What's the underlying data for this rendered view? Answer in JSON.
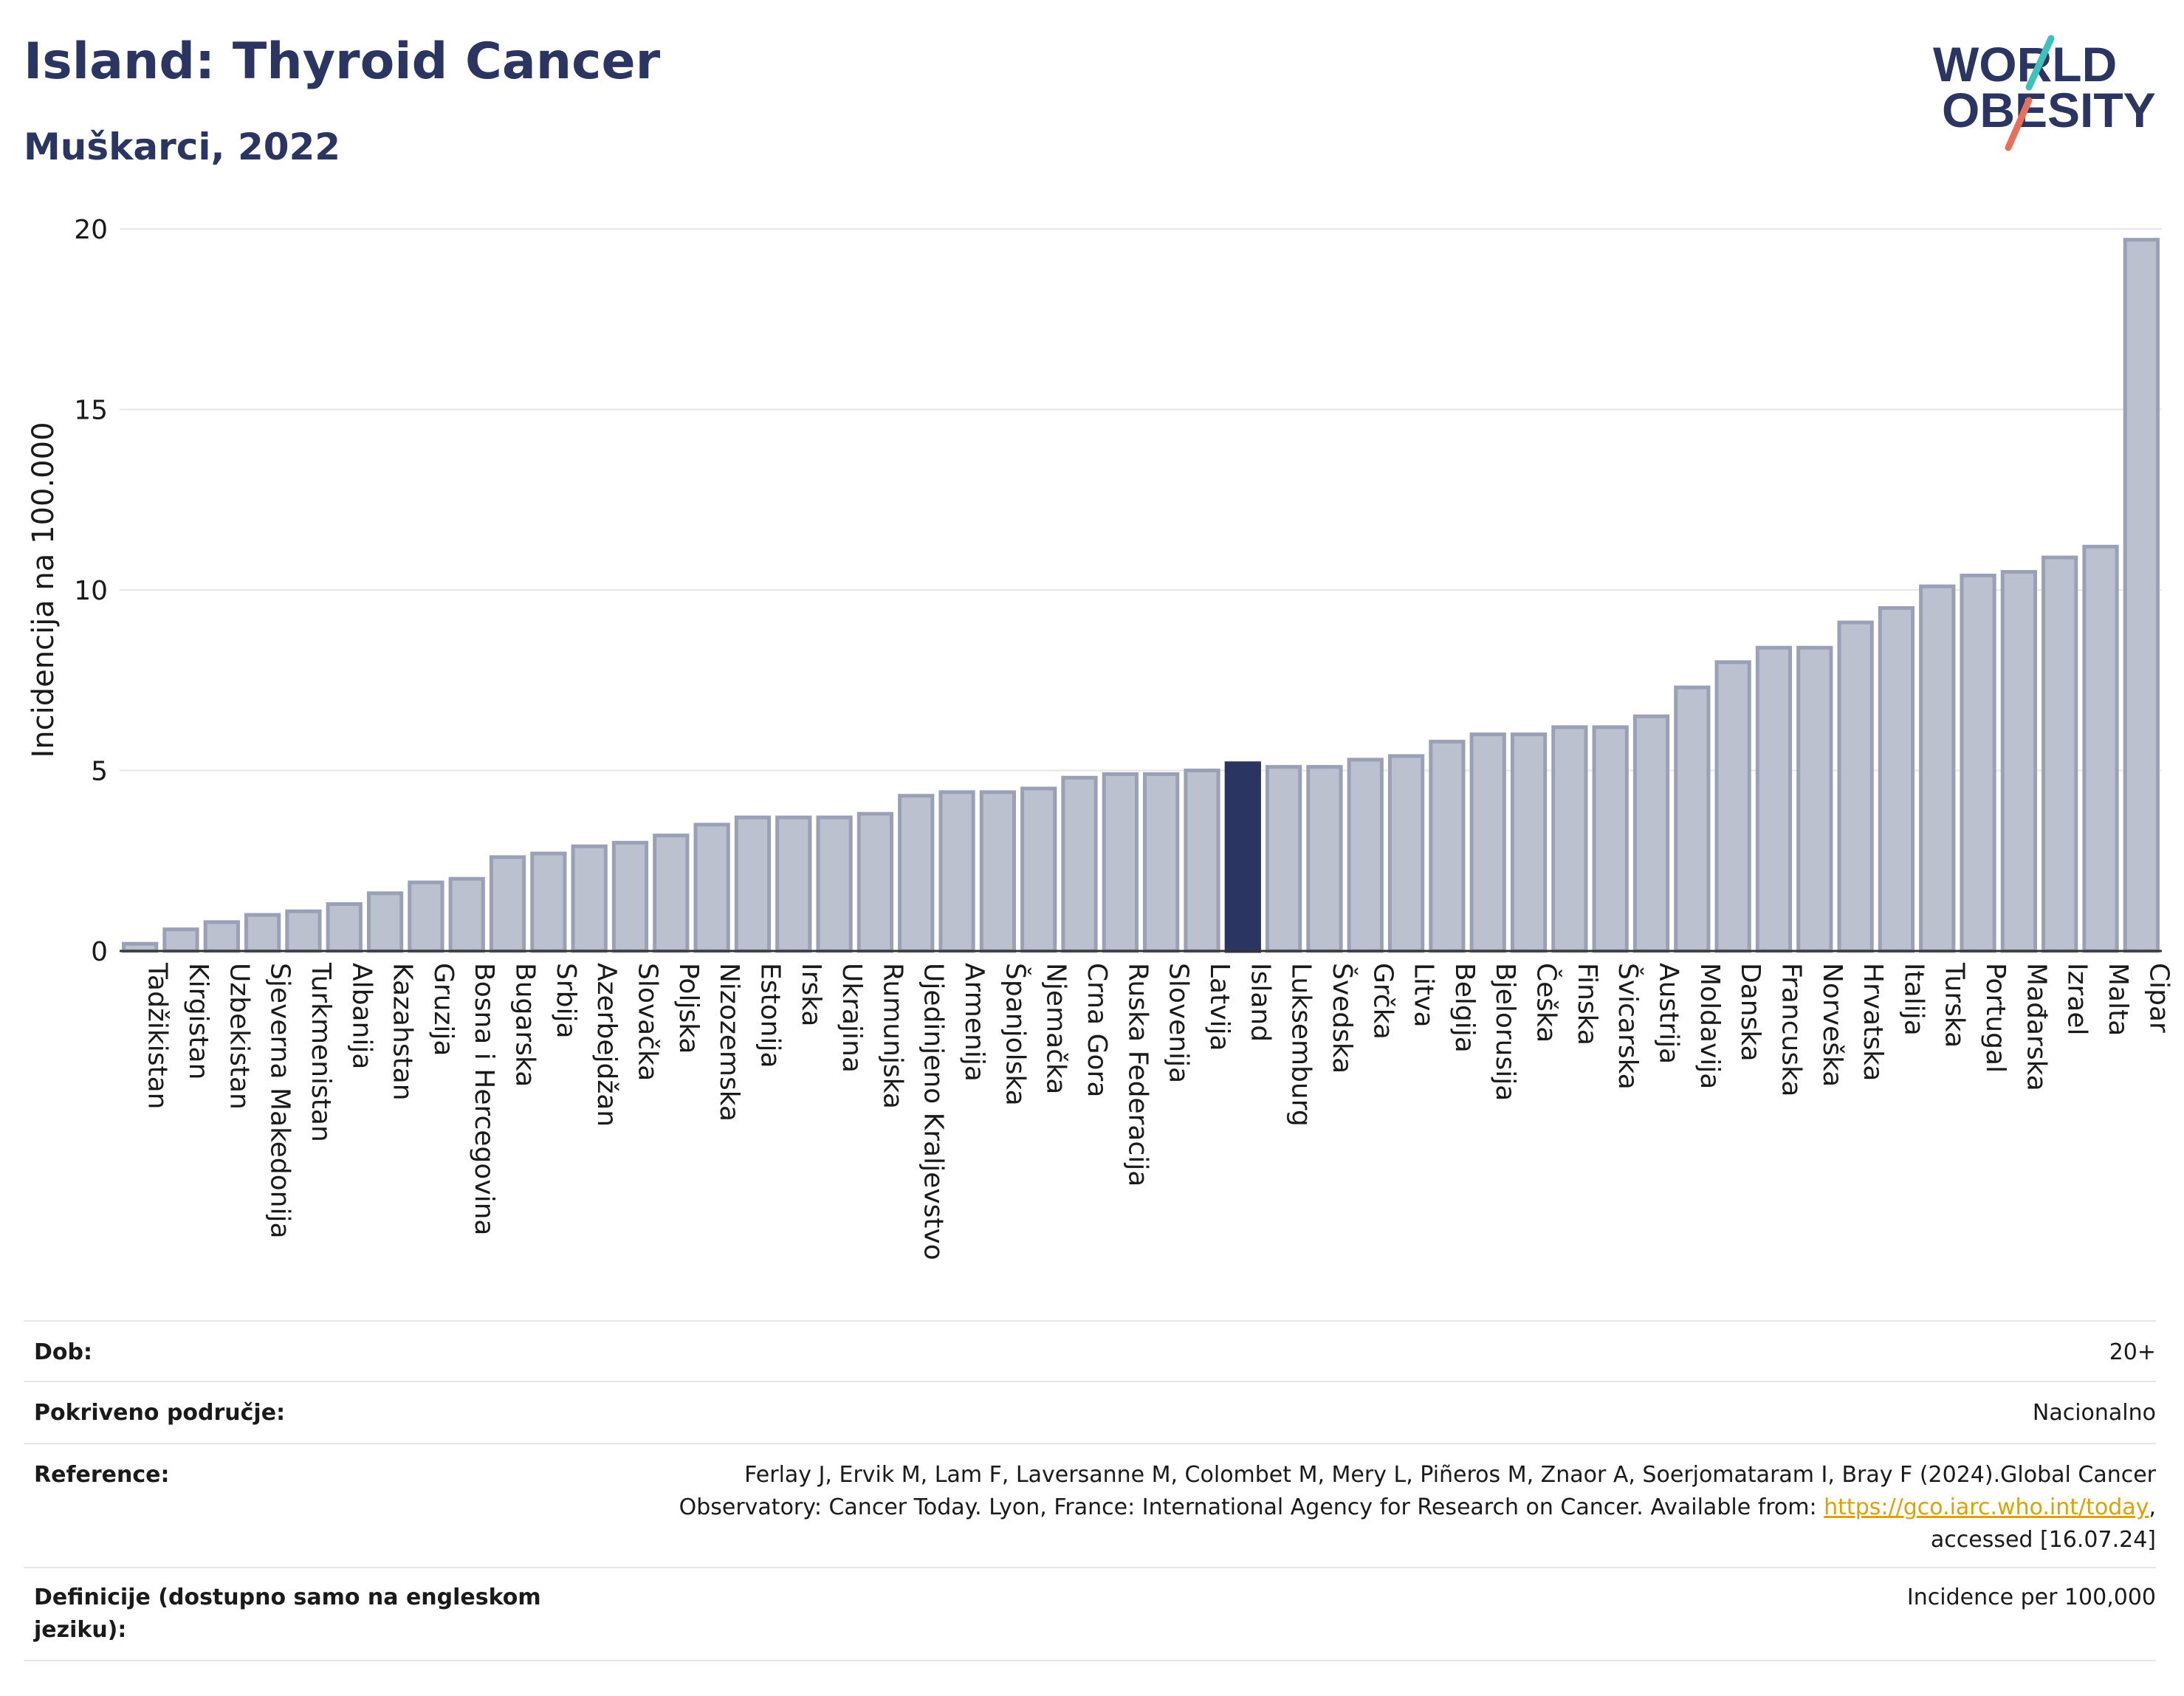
{
  "header": {
    "title": "Island: Thyroid Cancer",
    "subtitle": "Muškarci, 2022"
  },
  "logo": {
    "line1": "WORLD",
    "line2": "OBESITY",
    "colors": {
      "text": "#2b3561",
      "slash_top": "#3cc1bd",
      "slash_bottom": "#e8705a"
    }
  },
  "colors": {
    "bar_fill": "#bcc1cf",
    "bar_stroke": "#9aa1b7",
    "highlight_fill": "#2b3561",
    "grid": "#e6e6e6",
    "axis": "#333333"
  },
  "chart_data": {
    "type": "bar",
    "title": "Island: Thyroid Cancer",
    "subtitle": "Muškarci, 2022",
    "xlabel": "",
    "ylabel": "Incidencija na 100.000",
    "ylim": [
      0,
      20
    ],
    "yticks": [
      0,
      5,
      10,
      15,
      20
    ],
    "grid": true,
    "highlight": "Island",
    "categories": [
      "Tadžikistan",
      "Kirgistan",
      "Uzbekistan",
      "Sjeverna Makedonija",
      "Turkmenistan",
      "Albanija",
      "Kazahstan",
      "Gruzija",
      "Bosna i Hercegovina",
      "Bugarska",
      "Srbija",
      "Azerbejdžan",
      "Slovačka",
      "Poljska",
      "Nizozemska",
      "Estonija",
      "Irska",
      "Ukrajina",
      "Rumunjska",
      "Ujedinjeno Kraljevstvo",
      "Armenija",
      "Španjolska",
      "Njemačka",
      "Crna Gora",
      "Ruska Federacija",
      "Slovenija",
      "Latvija",
      "Island",
      "Luksemburg",
      "Švedska",
      "Grčka",
      "Litva",
      "Belgija",
      "Bjelorusija",
      "Češka",
      "Finska",
      "Švicarska",
      "Austrija",
      "Moldavija",
      "Danska",
      "Francuska",
      "Norveška",
      "Hrvatska",
      "Italija",
      "Turska",
      "Portugal",
      "Mađarska",
      "Izrael",
      "Malta",
      "Cipar"
    ],
    "values": [
      0.2,
      0.6,
      0.8,
      1.0,
      1.1,
      1.3,
      1.6,
      1.9,
      2.0,
      2.6,
      2.7,
      2.9,
      3.0,
      3.2,
      3.5,
      3.7,
      3.7,
      3.7,
      3.8,
      4.3,
      4.4,
      4.4,
      4.5,
      4.8,
      4.9,
      4.9,
      5.0,
      5.2,
      5.1,
      5.1,
      5.3,
      5.4,
      5.8,
      6.0,
      6.0,
      6.2,
      6.2,
      6.5,
      7.3,
      8.0,
      8.4,
      8.4,
      9.1,
      9.5,
      10.1,
      10.4,
      10.5,
      10.9,
      11.2,
      19.7
    ]
  },
  "info": {
    "rows": [
      {
        "label": "Dob:",
        "value": "20+"
      },
      {
        "label": "Pokriveno područje:",
        "value": "Nacionalno"
      },
      {
        "label": "Reference:",
        "value_line1": "Ferlay J, Ervik M, Lam F, Laversanne M, Colombet M, Mery L, Piñeros M, Znaor A, Soerjomataram I, Bray F (2024).Global Cancer",
        "value_line2_pre": "Observatory: Cancer Today. Lyon, France: International Agency for Research on Cancer. Available from: ",
        "link": "https://gco.iarc.who.int/today",
        "value_line2_post": ",",
        "value_line3": "accessed [16.07.24]"
      },
      {
        "label": "Definicije (dostupno samo na engleskom jeziku):",
        "value": "Incidence per 100,000"
      }
    ]
  }
}
